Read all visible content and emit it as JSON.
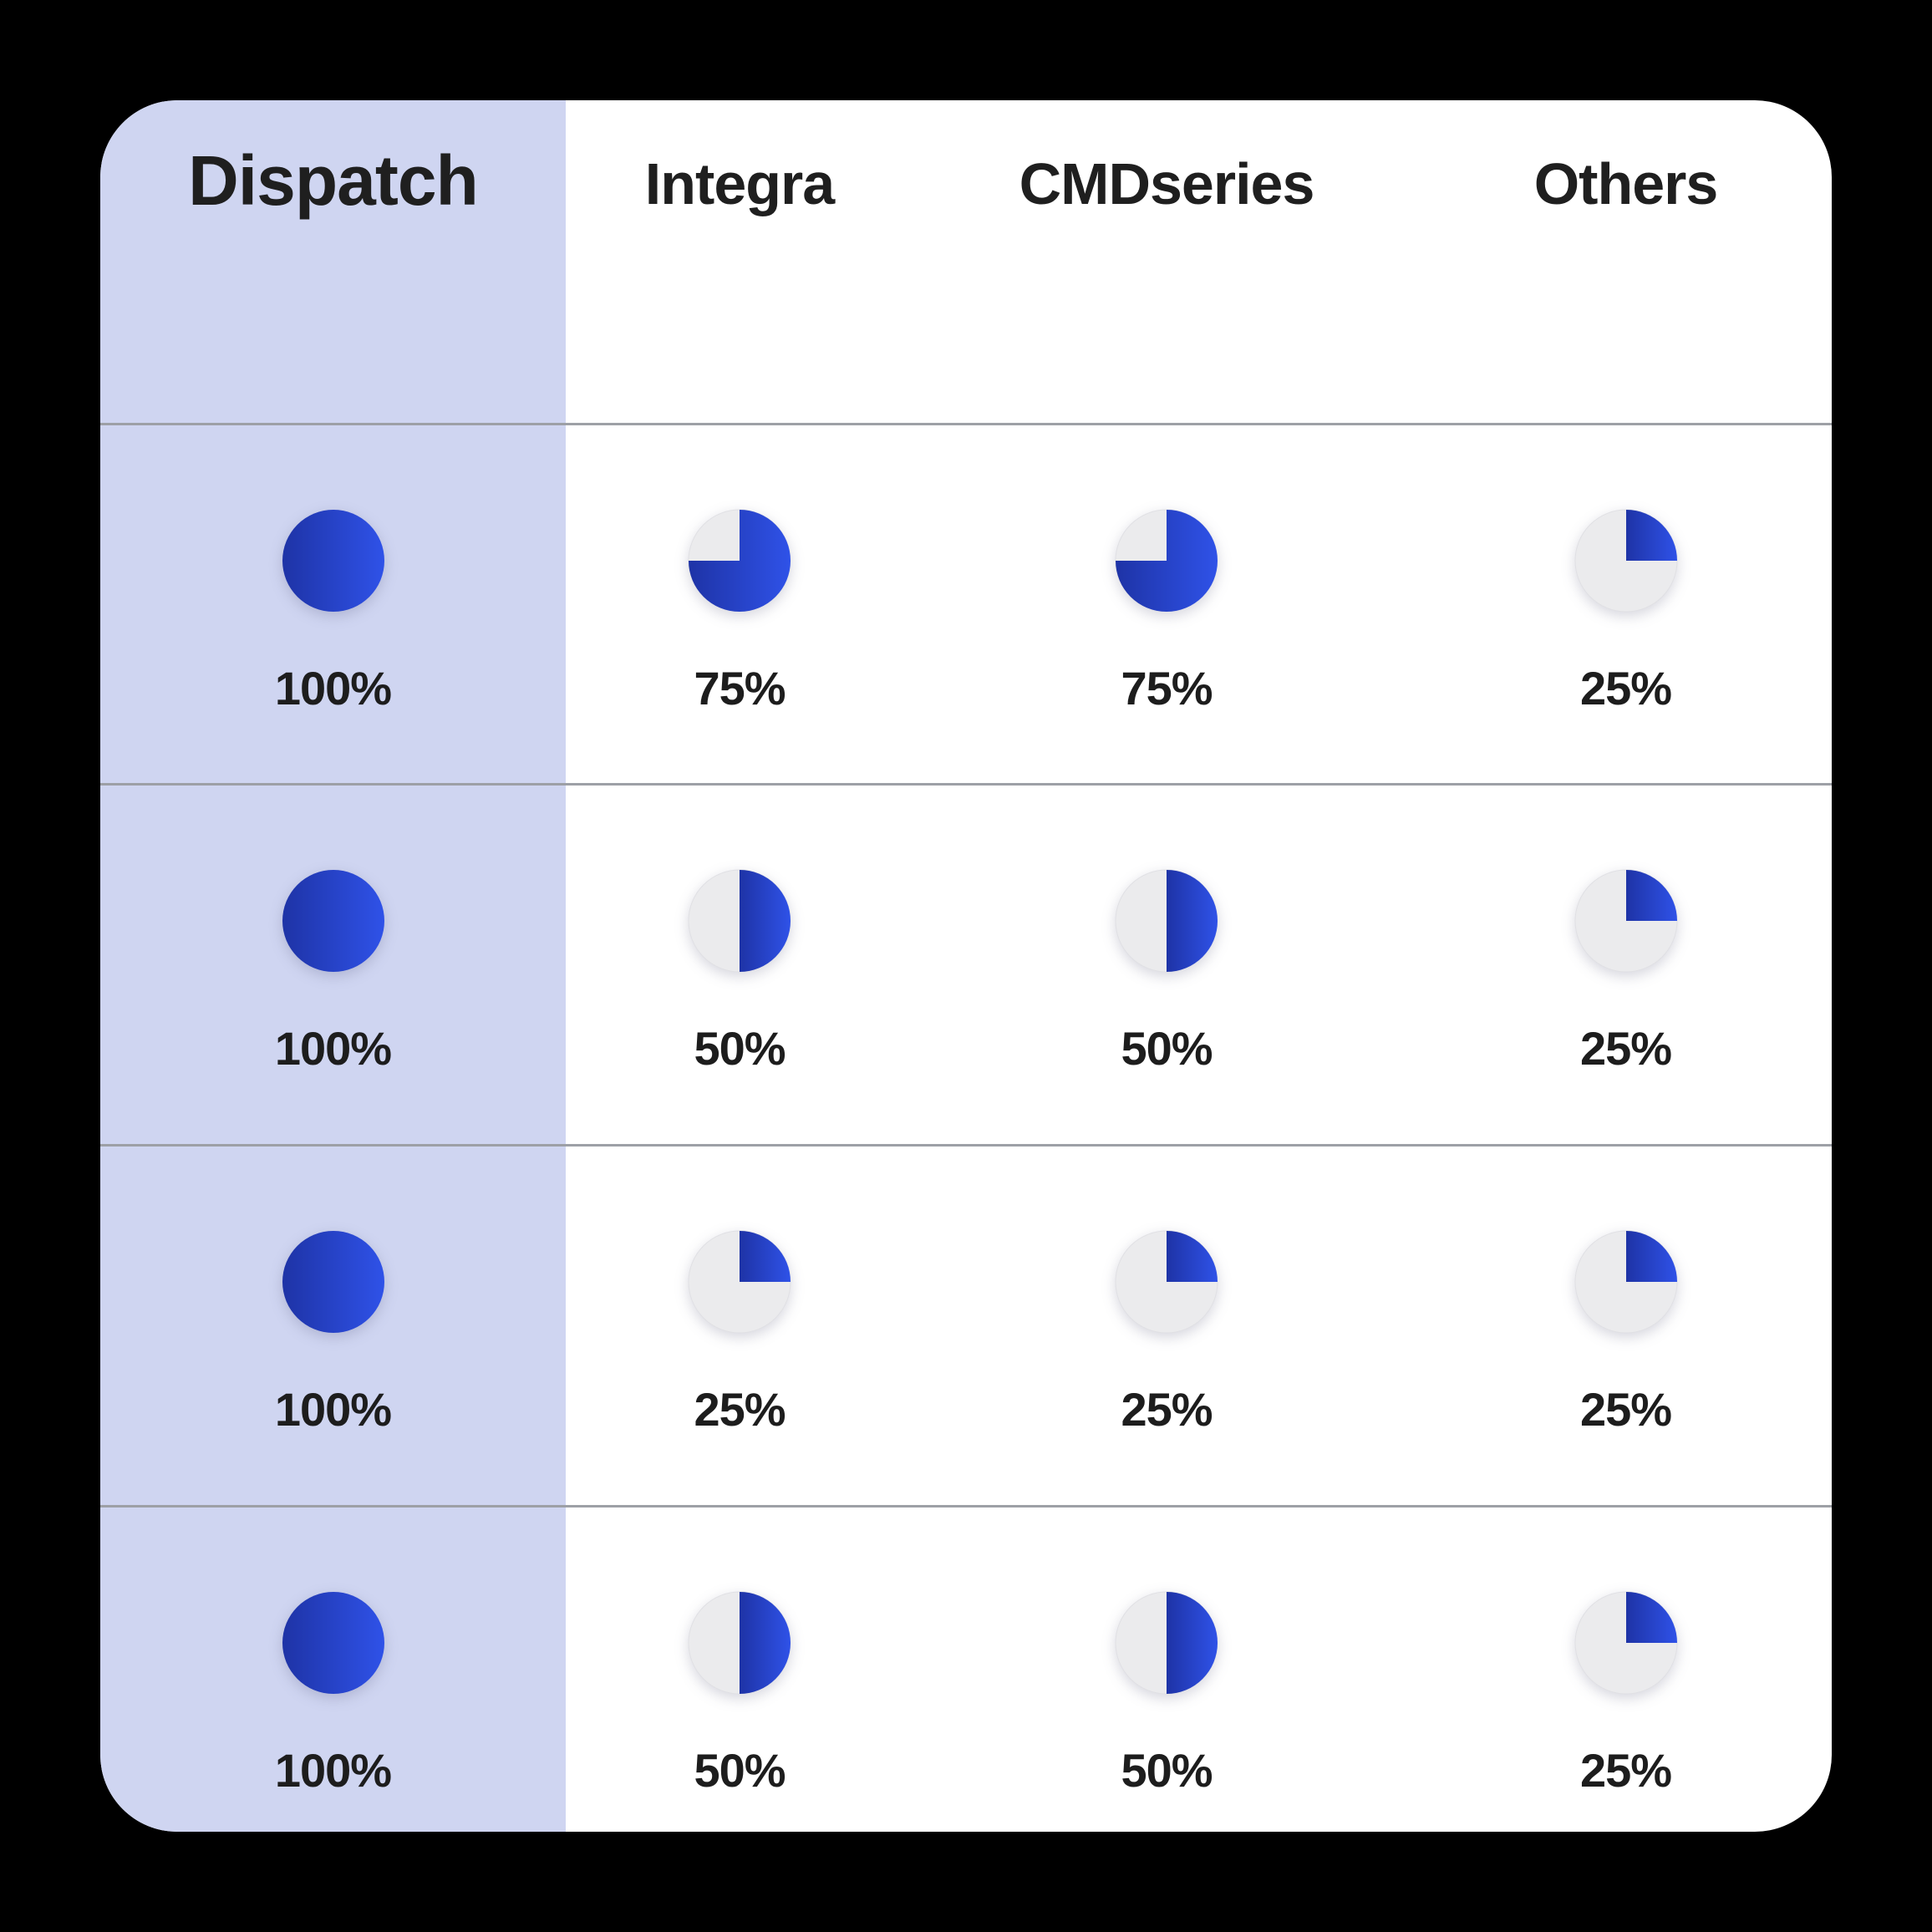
{
  "colors": {
    "page_bg": "#000000",
    "card_bg": "#ffffff",
    "highlight_column_bg": "#cfd5f1",
    "pie_blue_dark": "#1e33a6",
    "pie_blue_light": "#2f52e8",
    "pie_empty_gray": "#ebebed",
    "divider_gray": "#9da0a6",
    "text_dark": "#1f1f1f"
  },
  "table": {
    "columns": [
      {
        "id": "dispatch",
        "label": "Dispatch",
        "highlight": true
      },
      {
        "id": "integra",
        "label": "Integra",
        "highlight": false
      },
      {
        "id": "cmdseries",
        "label": "CMDseries",
        "highlight": false
      },
      {
        "id": "others",
        "label": "Others",
        "highlight": false
      }
    ],
    "rows": [
      {
        "cells": [
          {
            "percent": 100,
            "label": "100%"
          },
          {
            "percent": 75,
            "label": "75%"
          },
          {
            "percent": 75,
            "label": "75%"
          },
          {
            "percent": 25,
            "label": "25%"
          }
        ]
      },
      {
        "cells": [
          {
            "percent": 100,
            "label": "100%"
          },
          {
            "percent": 50,
            "label": "50%"
          },
          {
            "percent": 50,
            "label": "50%"
          },
          {
            "percent": 25,
            "label": "25%"
          }
        ]
      },
      {
        "cells": [
          {
            "percent": 100,
            "label": "100%"
          },
          {
            "percent": 25,
            "label": "25%"
          },
          {
            "percent": 25,
            "label": "25%"
          },
          {
            "percent": 25,
            "label": "25%"
          }
        ]
      },
      {
        "cells": [
          {
            "percent": 100,
            "label": "100%"
          },
          {
            "percent": 50,
            "label": "50%"
          },
          {
            "percent": 50,
            "label": "50%"
          },
          {
            "percent": 25,
            "label": "25%"
          }
        ]
      }
    ]
  },
  "chart_data": {
    "type": "table",
    "title": "",
    "columns": [
      "Dispatch",
      "Integra",
      "CMDseries",
      "Others"
    ],
    "rows_percent": [
      [
        100,
        75,
        75,
        25
      ],
      [
        100,
        50,
        50,
        25
      ],
      [
        100,
        25,
        25,
        25
      ],
      [
        100,
        50,
        50,
        25
      ]
    ],
    "value_format": "percent",
    "glyph": "pie",
    "pie_fill_start": "12-oclock-clockwise",
    "highlighted_column": "Dispatch"
  }
}
